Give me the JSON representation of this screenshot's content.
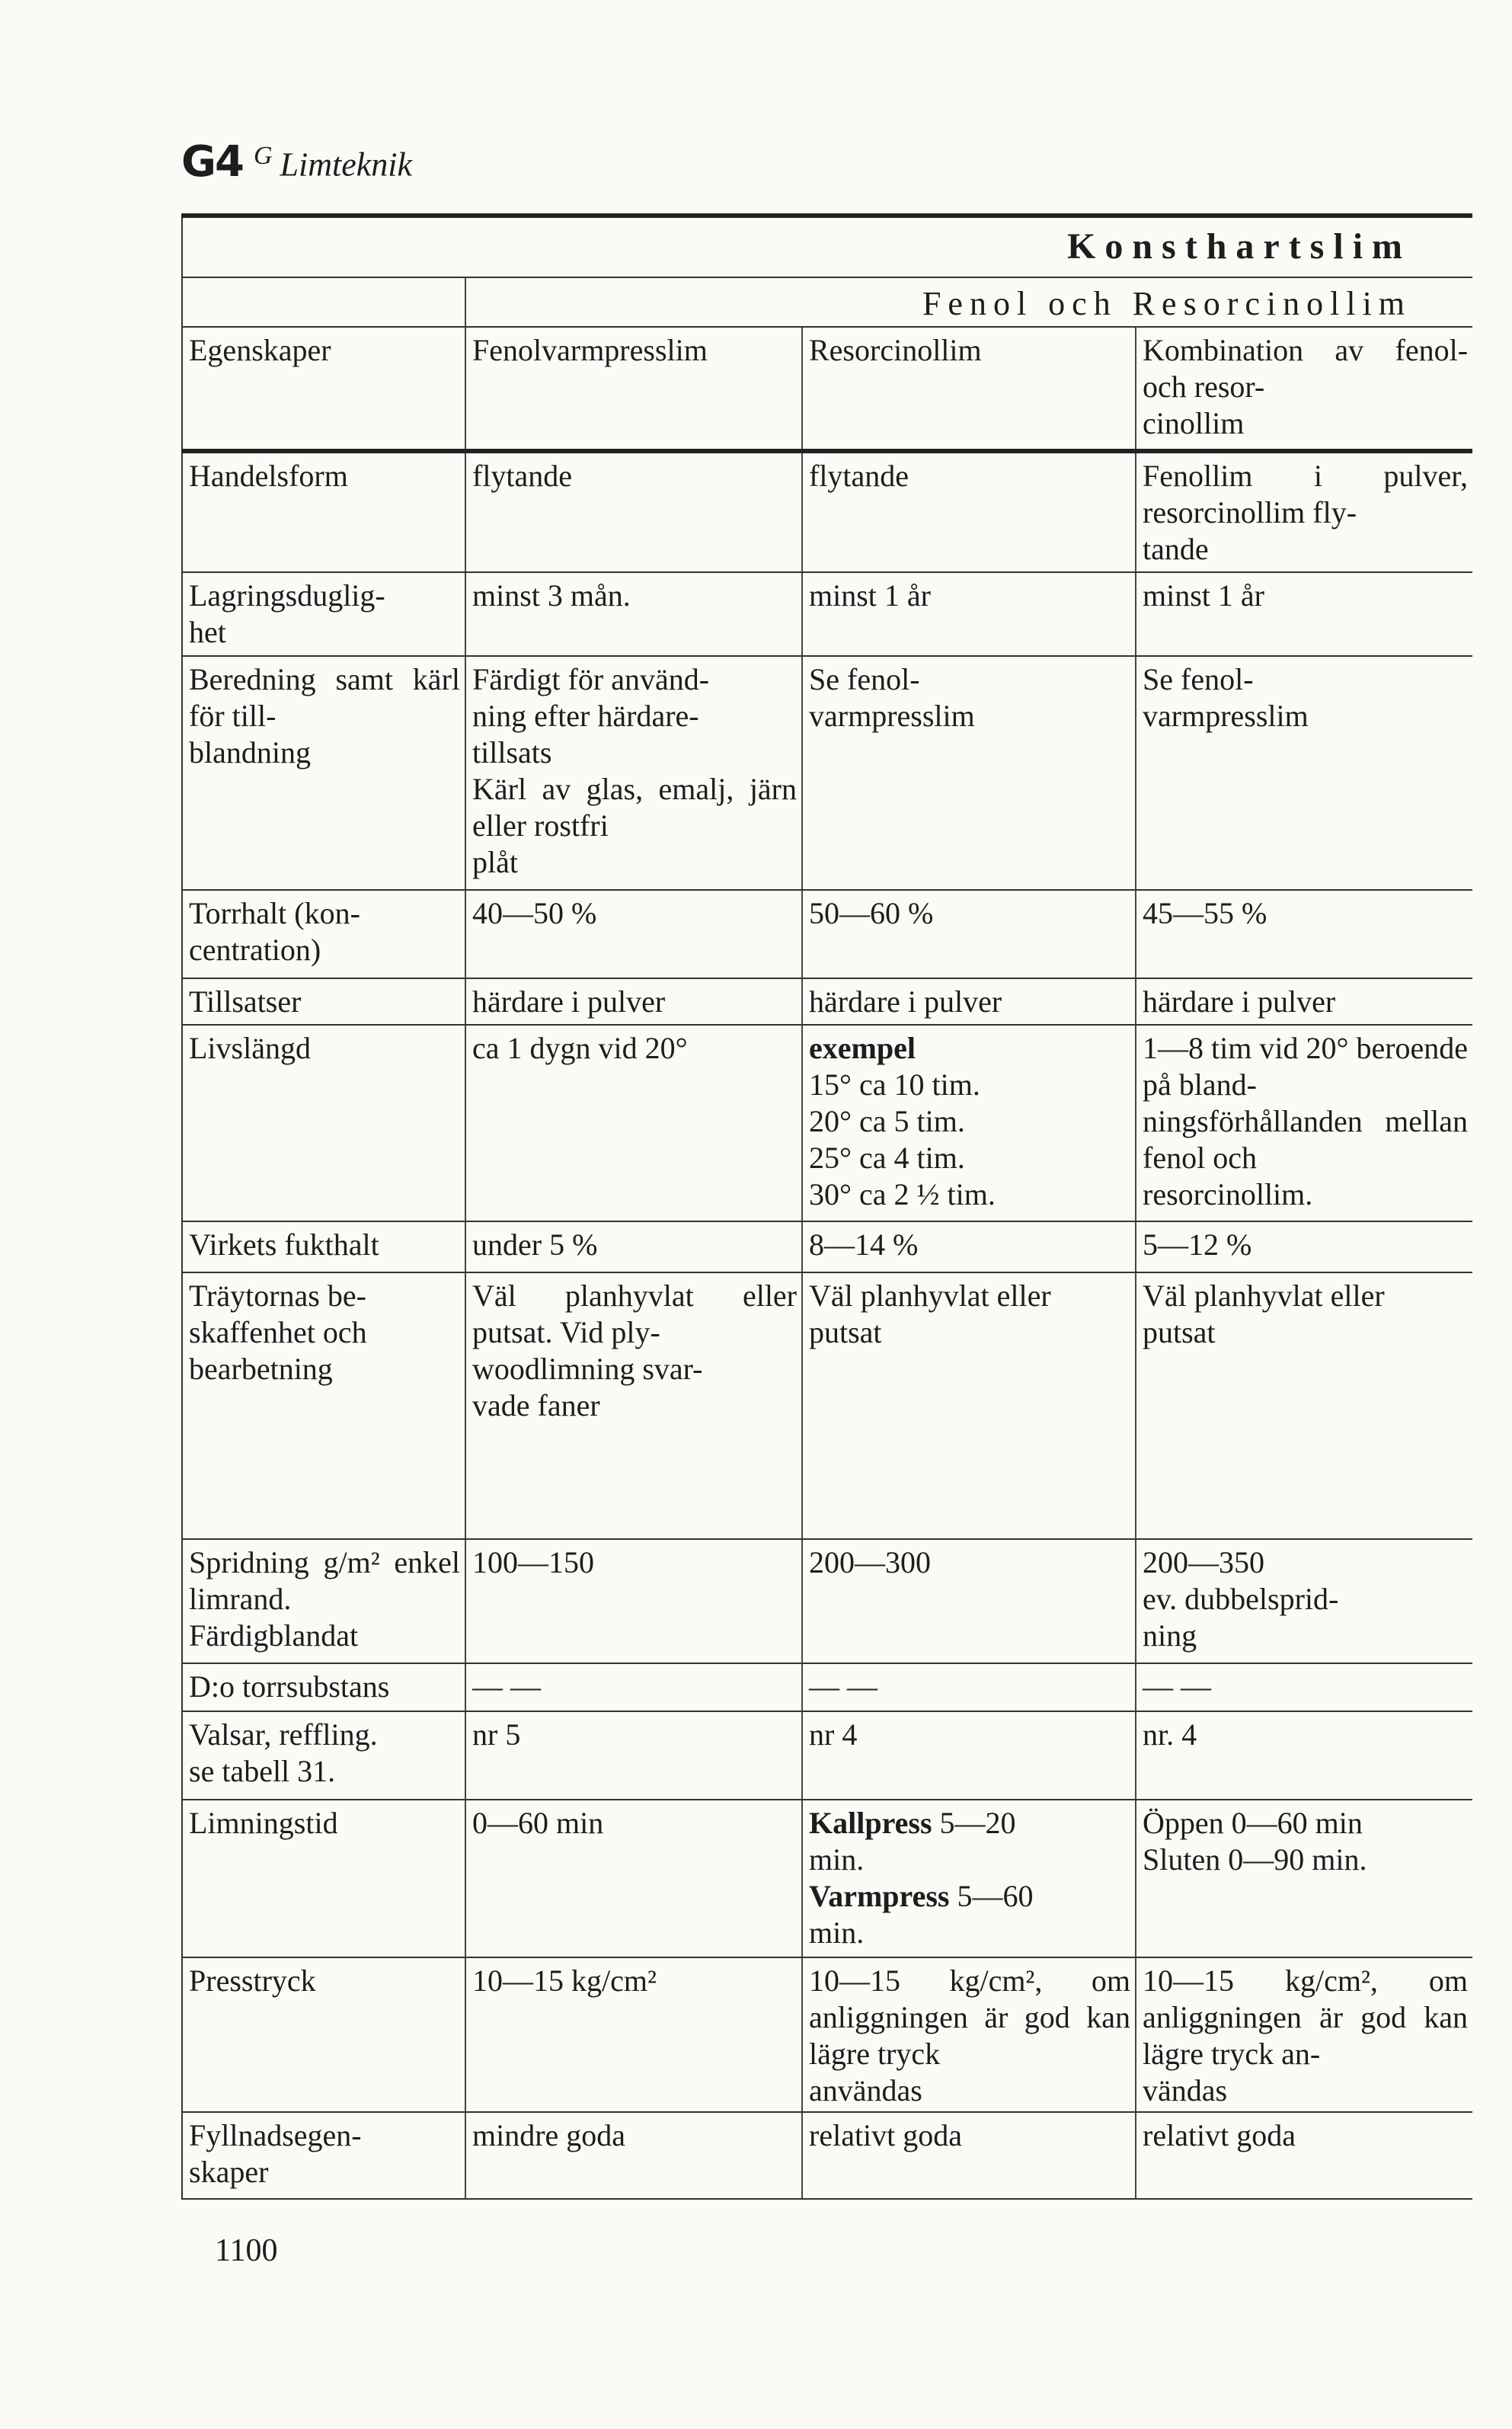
{
  "header": {
    "chapter_code": "G4",
    "section_letter": "G",
    "section_title": "Limteknik"
  },
  "table": {
    "title": "Konsthartslim",
    "subtitle": "Fenol och Resorcinollim",
    "columns": [
      "Egenskaper",
      "Fenolvarmpresslim",
      "Resorcinollim",
      "Kombination av fenol- och resor-\ncinollim"
    ],
    "rows": [
      {
        "label": "Handelsform",
        "cells": [
          "flytande",
          "flytande",
          "Fenollim i pulver, resorcinollim fly-\ntande"
        ]
      },
      {
        "label": "Lagringsduglig-\nhet",
        "cells": [
          "minst 3 mån.",
          "minst 1 år",
          "minst 1 år"
        ]
      },
      {
        "label": "Beredning samt kärl för till-\nblandning",
        "cells": [
          "Färdigt för använd-\nning efter härdare-\ntillsats\nKärl av glas, emalj, järn eller rostfri\nplåt",
          "Se fenol-\nvarmpresslim",
          "Se fenol-\nvarmpresslim"
        ]
      },
      {
        "label": "Torrhalt (kon-\ncentration)",
        "cells": [
          "40—50 %",
          "50—60 %",
          "45—55 %"
        ]
      },
      {
        "label": "Tillsatser",
        "cells": [
          "härdare i pulver",
          "härdare i pulver",
          "härdare i pulver"
        ]
      },
      {
        "label": "Livslängd",
        "cells": [
          "ca 1 dygn vid 20°",
          [
            {
              "b": true,
              "t": "exempel"
            },
            {
              "t": "\n15° ca 10 tim.\n20° ca  5 tim.\n25° ca  4 tim.\n30° ca  2 ½ tim."
            }
          ],
          "1—8 tim vid 20° beroende på bland-\nningsförhållanden mellan fenol och\nresorcinollim."
        ]
      },
      {
        "label": "Virkets fukthalt",
        "cells": [
          "under 5 %",
          "8—14 %",
          "5—12 %"
        ]
      },
      {
        "label": "Träytornas be-\nskaffenhet och\nbearbetning",
        "cells": [
          "Väl planhyvlat eller putsat. Vid ply-\nwoodlimning svar-\nvade faner",
          "Väl planhyvlat eller\nputsat",
          "Väl planhyvlat eller\nputsat"
        ]
      },
      {
        "label": "Spridning g/m² enkel limrand.\nFärdigblandat",
        "cells": [
          "100—150",
          "200—300",
          "200—350\nev. dubbelsprid-\nning"
        ]
      },
      {
        "label": "D:o torrsubstans",
        "cells": [
          "— —",
          "— —",
          "— —"
        ]
      },
      {
        "label": "Valsar, reffling.\nse tabell 31.",
        "cells": [
          "nr 5",
          "nr 4",
          "nr. 4"
        ]
      },
      {
        "label": "Limningstid",
        "cells": [
          "0—60 min",
          [
            {
              "b": true,
              "t": "Kallpress"
            },
            {
              "t": " 5—20\nmin.\n"
            },
            {
              "b": true,
              "t": "Varmpress"
            },
            {
              "t": " 5—60\nmin."
            }
          ],
          "Öppen 0—60 min\nSluten 0—90 min."
        ]
      },
      {
        "label": "Presstryck",
        "cells": [
          "10—15 kg/cm²",
          "10—15 kg/cm², om anliggningen är god kan lägre tryck\nanvändas",
          "10—15 kg/cm², om anliggningen är god kan lägre tryck an-\nvändas"
        ]
      },
      {
        "label": "Fyllnadsegen-\nskaper",
        "cells": [
          "mindre goda",
          "relativt goda",
          "relativt goda"
        ]
      }
    ]
  },
  "page_number": "1100"
}
